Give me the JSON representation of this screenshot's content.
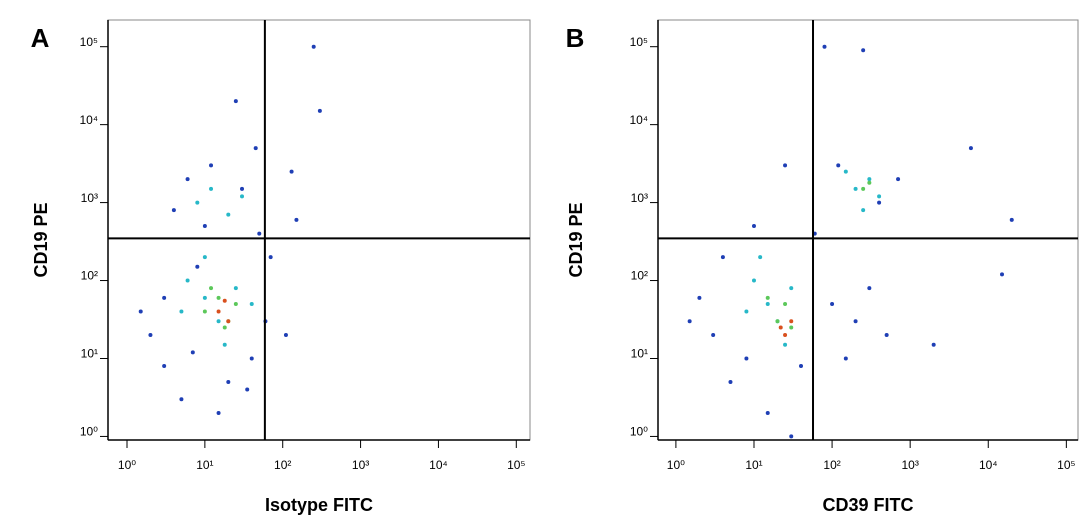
{
  "chart_data": [
    {
      "type": "scatter",
      "panel_label": "A",
      "x_label": "Isotype FITC",
      "y_label": "CD19 PE",
      "log_x": true,
      "log_y": true,
      "xlim": [
        0.57,
        150000
      ],
      "ylim": [
        0.9,
        220000
      ],
      "xticks": [
        {
          "value": 1,
          "label": "10⁰"
        },
        {
          "value": 10,
          "label": "10¹"
        },
        {
          "value": 100,
          "label": "10²"
        },
        {
          "value": 1000,
          "label": "10³"
        },
        {
          "value": 10000,
          "label": "10⁴"
        },
        {
          "value": 100000,
          "label": "10⁵"
        }
      ],
      "yticks": [
        {
          "value": 1,
          "label": "10⁰"
        },
        {
          "value": 10,
          "label": "10¹"
        },
        {
          "value": 100,
          "label": "10²"
        },
        {
          "value": 1000,
          "label": "10³"
        },
        {
          "value": 10000,
          "label": "10⁴"
        },
        {
          "value": 100000,
          "label": "10⁵"
        }
      ],
      "quadrant_x": 59,
      "quadrant_y": 347,
      "series": [
        {
          "color": "#1f3fb5",
          "x": [
            2,
            3,
            5,
            8,
            20,
            40,
            60,
            4,
            6,
            12,
            30,
            50,
            3,
            7,
            15,
            35,
            150,
            250,
            110,
            300,
            1.5,
            25,
            10,
            45,
            70,
            130
          ],
          "values": [
            20,
            8,
            3,
            150,
            5,
            10,
            30,
            800,
            2000,
            3000,
            1500,
            400,
            60,
            12,
            2,
            4,
            600,
            100000,
            20,
            15000,
            40,
            20000,
            500,
            5000,
            200,
            2500
          ]
        },
        {
          "color": "#27b8c8",
          "x": [
            6,
            10,
            15,
            25,
            8,
            12,
            20,
            30,
            5,
            10,
            18,
            40
          ],
          "values": [
            100,
            60,
            30,
            80,
            1000,
            1500,
            700,
            1200,
            40,
            200,
            15,
            50
          ]
        },
        {
          "color": "#5cc85a",
          "x": [
            10,
            15,
            20,
            12,
            25,
            18
          ],
          "values": [
            40,
            60,
            30,
            80,
            50,
            25
          ]
        },
        {
          "color": "#d9501e",
          "x": [
            15,
            20,
            18
          ],
          "values": [
            40,
            30,
            55
          ]
        }
      ]
    },
    {
      "type": "scatter",
      "panel_label": "B",
      "x_label": "CD39 FITC",
      "y_label": "CD19 PE",
      "log_x": true,
      "log_y": true,
      "xlim": [
        0.59,
        141000
      ],
      "ylim": [
        0.9,
        220000
      ],
      "xticks": [
        {
          "value": 1,
          "label": "10⁰"
        },
        {
          "value": 10,
          "label": "10¹"
        },
        {
          "value": 100,
          "label": "10²"
        },
        {
          "value": 1000,
          "label": "10³"
        },
        {
          "value": 10000,
          "label": "10⁴"
        },
        {
          "value": 100000,
          "label": "10⁵"
        }
      ],
      "yticks": [
        {
          "value": 1,
          "label": "10⁰"
        },
        {
          "value": 10,
          "label": "10¹"
        },
        {
          "value": 100,
          "label": "10²"
        },
        {
          "value": 1000,
          "label": "10³"
        },
        {
          "value": 10000,
          "label": "10⁴"
        },
        {
          "value": 100000,
          "label": "10⁵"
        }
      ],
      "quadrant_x": 57,
      "quadrant_y": 347,
      "series": [
        {
          "color": "#1f3fb5",
          "x": [
            3,
            5,
            8,
            2,
            1.5,
            15,
            40,
            60,
            100,
            150,
            200,
            300,
            500,
            120,
            80,
            250,
            2000,
            20000,
            6000,
            15000,
            25,
            10,
            400,
            700,
            4,
            30
          ],
          "values": [
            20,
            5,
            10,
            60,
            30,
            2,
            8,
            400,
            50,
            10,
            30,
            80,
            20,
            3000,
            100000,
            90000,
            15,
            600,
            5000,
            120,
            3000,
            500,
            1000,
            2000,
            200,
            1
          ]
        },
        {
          "color": "#27b8c8",
          "x": [
            10,
            15,
            20,
            30,
            8,
            12,
            25,
            200,
            300,
            250,
            400,
            150
          ],
          "values": [
            100,
            50,
            30,
            80,
            40,
            200,
            15,
            1500,
            2000,
            800,
            1200,
            2500
          ]
        },
        {
          "color": "#5cc85a",
          "x": [
            20,
            25,
            30,
            15,
            250,
            300
          ],
          "values": [
            30,
            50,
            25,
            60,
            1500,
            1800
          ]
        },
        {
          "color": "#d9501e",
          "x": [
            25,
            30,
            22
          ],
          "values": [
            20,
            30,
            25
          ]
        }
      ]
    }
  ]
}
